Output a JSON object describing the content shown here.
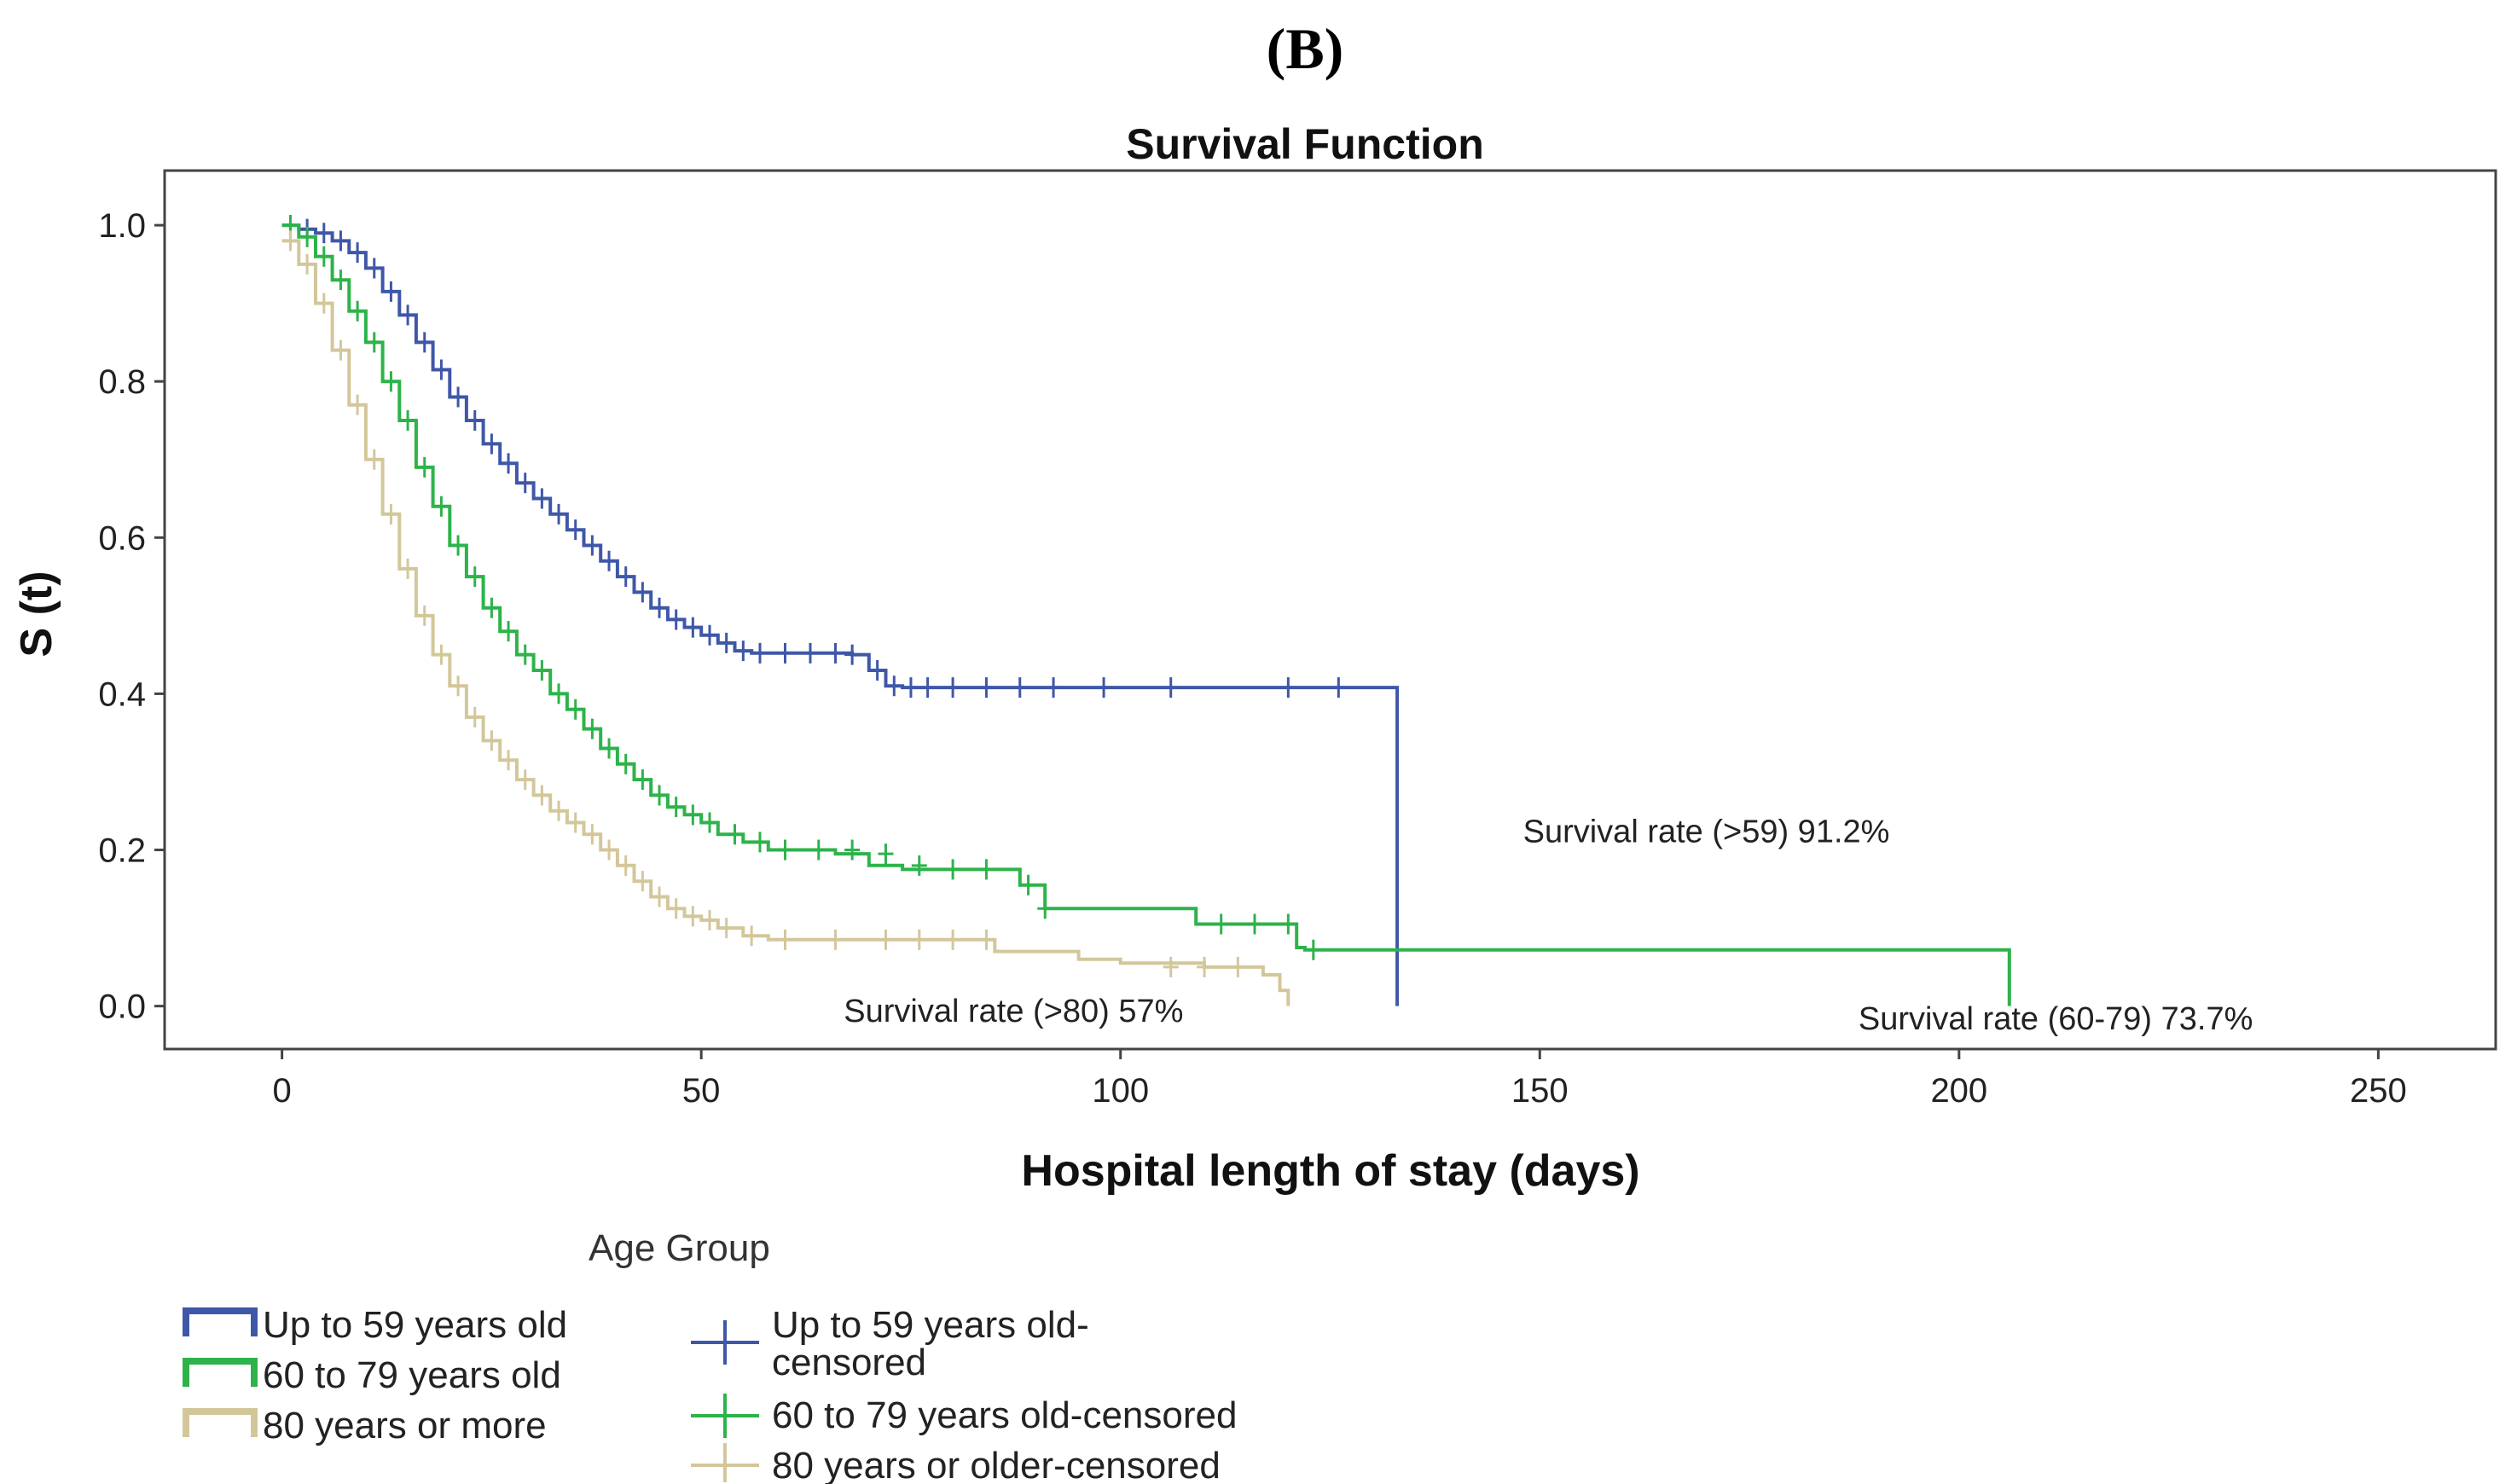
{
  "panel_label": "(B)",
  "chart_data": {
    "type": "line",
    "title": "Survival Function",
    "xlabel": "Hospital length of stay (days)",
    "ylabel": "S (t)",
    "xlim": [
      -14,
      264
    ],
    "ylim": [
      -0.055,
      1.07
    ],
    "xticks": [
      0,
      50,
      100,
      150,
      200,
      250
    ],
    "xtick_labels": [
      "0",
      "50",
      "100",
      "150",
      "200",
      "250"
    ],
    "yticks": [
      0.0,
      0.2,
      0.4,
      0.6,
      0.8,
      1.0
    ],
    "ytick_labels": [
      "0.0",
      "0.2",
      "0.4",
      "0.6",
      "0.8",
      "1.0"
    ],
    "series": [
      {
        "name": "Up to 59 years old",
        "censored_name": "Up to 59 years old-censored",
        "color": "#3f57a8",
        "x": [
          0,
          2,
          4,
          6,
          8,
          10,
          12,
          14,
          16,
          18,
          20,
          22,
          24,
          26,
          28,
          30,
          32,
          34,
          36,
          38,
          40,
          42,
          44,
          46,
          48,
          50,
          52,
          54,
          56,
          60,
          64,
          68,
          70,
          72,
          74,
          133,
          133
        ],
        "y": [
          1.0,
          0.995,
          0.99,
          0.98,
          0.965,
          0.945,
          0.915,
          0.885,
          0.85,
          0.815,
          0.78,
          0.75,
          0.72,
          0.695,
          0.67,
          0.65,
          0.63,
          0.61,
          0.59,
          0.57,
          0.55,
          0.53,
          0.51,
          0.495,
          0.485,
          0.475,
          0.465,
          0.455,
          0.452,
          0.452,
          0.452,
          0.45,
          0.43,
          0.41,
          0.408,
          0.408,
          0.0
        ],
        "censored_x": [
          1,
          3,
          5,
          7,
          9,
          11,
          13,
          15,
          17,
          19,
          21,
          23,
          25,
          27,
          29,
          31,
          33,
          35,
          37,
          39,
          41,
          43,
          45,
          47,
          49,
          51,
          53,
          55,
          57,
          60,
          63,
          66,
          68,
          71,
          73,
          75,
          77,
          80,
          84,
          88,
          92,
          98,
          106,
          120,
          126
        ],
        "censored_y": [
          1.0,
          0.995,
          0.99,
          0.98,
          0.965,
          0.945,
          0.915,
          0.885,
          0.85,
          0.815,
          0.78,
          0.75,
          0.72,
          0.695,
          0.67,
          0.65,
          0.63,
          0.61,
          0.59,
          0.57,
          0.55,
          0.53,
          0.51,
          0.495,
          0.485,
          0.475,
          0.465,
          0.455,
          0.452,
          0.452,
          0.452,
          0.452,
          0.45,
          0.43,
          0.41,
          0.408,
          0.408,
          0.408,
          0.408,
          0.408,
          0.408,
          0.408,
          0.408,
          0.408,
          0.408
        ]
      },
      {
        "name": "60 to 79 years old",
        "censored_name": "60 to 79 years old-censored",
        "color": "#2db34a",
        "x": [
          0,
          2,
          4,
          6,
          8,
          10,
          12,
          14,
          16,
          18,
          20,
          22,
          24,
          26,
          28,
          30,
          32,
          34,
          36,
          38,
          40,
          42,
          44,
          46,
          48,
          50,
          52,
          55,
          58,
          62,
          66,
          70,
          74,
          80,
          86,
          88,
          91,
          109,
          121,
          122,
          206,
          206
        ],
        "y": [
          1.0,
          0.985,
          0.96,
          0.93,
          0.89,
          0.85,
          0.8,
          0.75,
          0.69,
          0.64,
          0.59,
          0.55,
          0.51,
          0.48,
          0.45,
          0.43,
          0.4,
          0.38,
          0.355,
          0.33,
          0.31,
          0.29,
          0.27,
          0.255,
          0.245,
          0.235,
          0.22,
          0.21,
          0.2,
          0.2,
          0.195,
          0.18,
          0.175,
          0.175,
          0.175,
          0.155,
          0.125,
          0.105,
          0.075,
          0.072,
          0.072,
          0.0
        ],
        "censored_x": [
          1,
          3,
          5,
          7,
          9,
          11,
          13,
          15,
          17,
          19,
          21,
          23,
          25,
          27,
          29,
          31,
          33,
          35,
          37,
          39,
          41,
          43,
          45,
          47,
          49,
          51,
          54,
          57,
          60,
          64,
          68,
          72,
          76,
          80,
          84,
          89,
          91,
          112,
          116,
          120,
          123
        ],
        "censored_y": [
          1.0,
          0.985,
          0.96,
          0.93,
          0.89,
          0.85,
          0.8,
          0.75,
          0.69,
          0.64,
          0.59,
          0.55,
          0.51,
          0.48,
          0.45,
          0.43,
          0.4,
          0.38,
          0.355,
          0.33,
          0.31,
          0.29,
          0.27,
          0.255,
          0.245,
          0.235,
          0.22,
          0.21,
          0.2,
          0.2,
          0.2,
          0.195,
          0.18,
          0.175,
          0.175,
          0.155,
          0.125,
          0.105,
          0.105,
          0.105,
          0.072
        ]
      },
      {
        "name": "80 years or more",
        "censored_name": "80 years or older-censored",
        "color": "#d3c79a",
        "x": [
          0,
          2,
          4,
          6,
          8,
          10,
          12,
          14,
          16,
          18,
          20,
          22,
          24,
          26,
          28,
          30,
          32,
          34,
          36,
          38,
          40,
          42,
          44,
          46,
          48,
          50,
          52,
          55,
          58,
          65,
          75,
          85,
          95,
          100,
          110,
          117,
          119,
          120
        ],
        "y": [
          0.98,
          0.95,
          0.9,
          0.84,
          0.77,
          0.7,
          0.63,
          0.56,
          0.5,
          0.45,
          0.41,
          0.37,
          0.34,
          0.315,
          0.29,
          0.27,
          0.25,
          0.235,
          0.22,
          0.2,
          0.18,
          0.16,
          0.14,
          0.125,
          0.115,
          0.11,
          0.1,
          0.09,
          0.085,
          0.085,
          0.085,
          0.07,
          0.06,
          0.055,
          0.05,
          0.04,
          0.02,
          0.0
        ],
        "censored_x": [
          1,
          3,
          5,
          7,
          9,
          11,
          13,
          15,
          17,
          19,
          21,
          23,
          25,
          27,
          29,
          31,
          33,
          35,
          37,
          39,
          41,
          43,
          45,
          47,
          49,
          51,
          53,
          56,
          60,
          66,
          72,
          76,
          80,
          84,
          106,
          110,
          114
        ],
        "censored_y": [
          0.98,
          0.95,
          0.9,
          0.84,
          0.77,
          0.7,
          0.63,
          0.56,
          0.5,
          0.45,
          0.41,
          0.37,
          0.34,
          0.315,
          0.29,
          0.27,
          0.25,
          0.235,
          0.22,
          0.2,
          0.18,
          0.16,
          0.14,
          0.125,
          0.115,
          0.11,
          0.1,
          0.09,
          0.085,
          0.085,
          0.085,
          0.085,
          0.085,
          0.085,
          0.05,
          0.05,
          0.05
        ]
      }
    ],
    "annotations": [
      {
        "text": "Survival rate (>59) 91.2%",
        "x": 148,
        "y": 0.21
      },
      {
        "text": "Survival rate (>80) 57%",
        "x": 67,
        "y": -0.02
      },
      {
        "text": "Survival rate (60-79) 73.7%",
        "x": 188,
        "y": -0.03
      }
    ],
    "legend": {
      "title": "Age Group",
      "position": "bottom-left",
      "entries": [
        "Up to 59 years old",
        "60 to 79 years old",
        "80 years or more",
        "Up to 59 years old-",
        "censored",
        "60 to 79 years old-censored",
        "80 years or older-censored"
      ]
    }
  }
}
